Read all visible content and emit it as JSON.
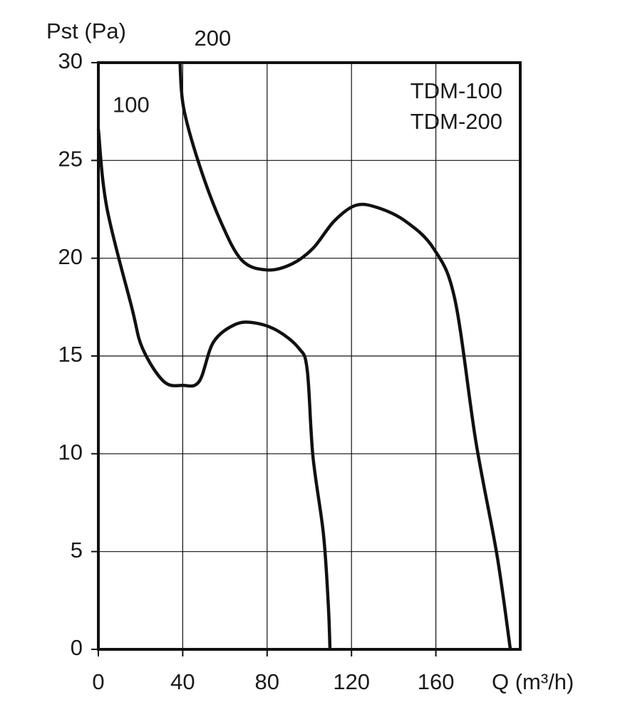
{
  "chart_data": {
    "type": "line",
    "title": "Pst (Pa)",
    "x_label": "Q (m³/h)",
    "legend_text": [
      "TDM-100",
      "TDM-200"
    ],
    "xlim": [
      0,
      200
    ],
    "xticks": [
      0,
      40,
      80,
      120,
      160
    ],
    "ylim": [
      0,
      30
    ],
    "yticks": [
      0,
      5,
      10,
      15,
      20,
      25,
      30
    ],
    "grid": true,
    "series": [
      {
        "name": "100",
        "color": "#111111",
        "x": [
          0,
          4,
          15.8,
          20.9,
          31,
          40,
          47.8,
          54.5,
          64.6,
          73.7,
          84.8,
          95,
          99,
          101.7,
          106.7,
          109,
          109.8
        ],
        "values": [
          26.6,
          22.6,
          17.5,
          15.4,
          13.7,
          13.5,
          13.7,
          15.7,
          16.6,
          16.7,
          16.3,
          15.4,
          14.3,
          9.9,
          5.9,
          2.3,
          0
        ]
      },
      {
        "name": "200",
        "color": "#111111",
        "x": [
          38.7,
          40.4,
          47.8,
          57.9,
          68,
          80,
          91.6,
          101.7,
          111.8,
          121.9,
          132,
          145.5,
          158.9,
          169,
          179,
          189,
          195.3
        ],
        "values": [
          30,
          27.7,
          24.8,
          21.9,
          19.9,
          19.4,
          19.7,
          20.5,
          21.9,
          22.7,
          22.6,
          21.9,
          20.5,
          17.9,
          10.6,
          4.8,
          0
        ]
      }
    ]
  }
}
